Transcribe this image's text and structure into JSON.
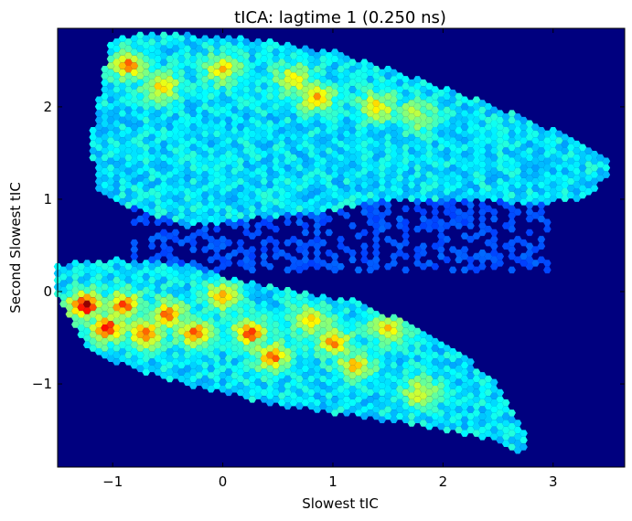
{
  "chart_data": {
    "type": "heatmap",
    "subtype": "hexbin",
    "colormap": "jet",
    "background_color": "#00007f",
    "title": "tICA: lagtime 1 (0.250 ns)",
    "xlabel": "Slowest tIC",
    "ylabel": "Second Slowest tIC",
    "xlim": [
      -1.5,
      3.65
    ],
    "ylim": [
      -1.9,
      2.85
    ],
    "xticks": [
      -1,
      0,
      1,
      2,
      3
    ],
    "xtick_labels": [
      "−1",
      "0",
      "1",
      "2",
      "3"
    ],
    "yticks": [
      -1,
      0,
      1,
      2
    ],
    "ytick_labels": [
      "−1",
      "0",
      "1",
      "2"
    ],
    "grid": false,
    "density_hotspots": [
      {
        "x": -1.25,
        "y": -0.15,
        "level": 1.0
      },
      {
        "x": -1.05,
        "y": -0.4,
        "level": 0.93
      },
      {
        "x": -0.9,
        "y": -0.15,
        "level": 0.85
      },
      {
        "x": -0.7,
        "y": -0.45,
        "level": 0.85
      },
      {
        "x": -0.5,
        "y": -0.25,
        "level": 0.85
      },
      {
        "x": -0.25,
        "y": -0.45,
        "level": 0.85
      },
      {
        "x": 0.0,
        "y": -0.05,
        "level": 0.75
      },
      {
        "x": 0.25,
        "y": -0.45,
        "level": 0.9
      },
      {
        "x": 0.45,
        "y": -0.7,
        "level": 0.85
      },
      {
        "x": 0.8,
        "y": -0.3,
        "level": 0.75
      },
      {
        "x": 1.0,
        "y": -0.55,
        "level": 0.8
      },
      {
        "x": 1.2,
        "y": -0.8,
        "level": 0.75
      },
      {
        "x": 1.5,
        "y": -0.4,
        "level": 0.72
      },
      {
        "x": 1.8,
        "y": -1.1,
        "level": 0.62
      },
      {
        "x": -0.85,
        "y": 2.45,
        "level": 0.82
      },
      {
        "x": -0.55,
        "y": 2.2,
        "level": 0.72
      },
      {
        "x": 0.0,
        "y": 2.4,
        "level": 0.72
      },
      {
        "x": 0.65,
        "y": 2.3,
        "level": 0.7
      },
      {
        "x": 0.85,
        "y": 2.1,
        "level": 0.75
      },
      {
        "x": 1.4,
        "y": 2.0,
        "level": 0.72
      },
      {
        "x": 1.75,
        "y": 1.9,
        "level": 0.58
      }
    ]
  }
}
